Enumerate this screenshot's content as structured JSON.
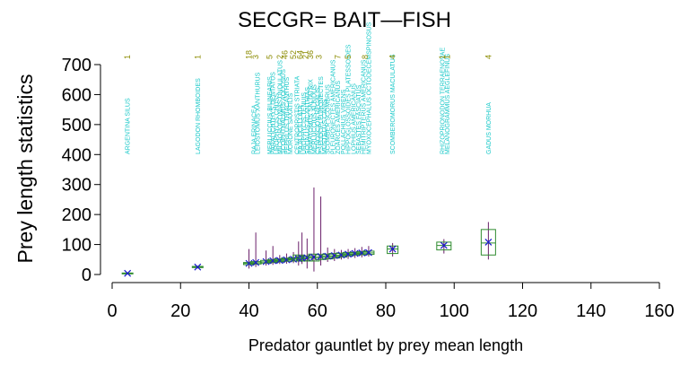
{
  "chart_data": {
    "type": "box",
    "title": "SECGR= BAIT—FISH",
    "xlabel": "Predator gauntlet by prey mean length",
    "ylabel": "Prey length statistics",
    "xlim": [
      0,
      160
    ],
    "ylim": [
      0,
      700
    ],
    "x_ticks": [
      0,
      20,
      40,
      60,
      80,
      100,
      120,
      140,
      160
    ],
    "y_ticks": [
      0,
      100,
      200,
      300,
      400,
      500,
      600,
      700
    ],
    "grid": false,
    "colors": {
      "box": "#2e8b2e",
      "whisker": "#6a1f6a",
      "mean": "#1a1acc",
      "species_label": "#19c8c8",
      "count_label": "#8b8b00",
      "axis": "#000000"
    },
    "boxes": [
      {
        "x": 4.5,
        "min": 2,
        "q1": 3,
        "median": 4,
        "q3": 5,
        "max": 6,
        "mean": 4
      },
      {
        "x": 25,
        "min": 20,
        "q1": 23,
        "median": 25,
        "q3": 27,
        "max": 29,
        "mean": 25
      },
      {
        "x": 40,
        "min": 20,
        "q1": 33,
        "median": 37,
        "q3": 40,
        "max": 85,
        "mean": 37
      },
      {
        "x": 42,
        "min": 25,
        "q1": 35,
        "median": 39,
        "q3": 43,
        "max": 140,
        "mean": 40
      },
      {
        "x": 45,
        "min": 30,
        "q1": 38,
        "median": 42,
        "q3": 47,
        "max": 80,
        "mean": 43
      },
      {
        "x": 47,
        "min": 32,
        "q1": 40,
        "median": 45,
        "q3": 50,
        "max": 95,
        "mean": 46
      },
      {
        "x": 49,
        "min": 35,
        "q1": 42,
        "median": 47,
        "q3": 52,
        "max": 65,
        "mean": 47
      },
      {
        "x": 51,
        "min": 36,
        "q1": 44,
        "median": 49,
        "q3": 54,
        "max": 70,
        "mean": 49
      },
      {
        "x": 53,
        "min": 38,
        "q1": 45,
        "median": 51,
        "q3": 56,
        "max": 75,
        "mean": 51
      },
      {
        "x": 54.5,
        "min": 30,
        "q1": 45,
        "median": 52,
        "q3": 65,
        "max": 110,
        "mean": 53
      },
      {
        "x": 55.5,
        "min": 35,
        "q1": 46,
        "median": 53,
        "q3": 60,
        "max": 140,
        "mean": 54
      },
      {
        "x": 57,
        "min": 20,
        "q1": 45,
        "median": 55,
        "q3": 62,
        "max": 120,
        "mean": 56
      },
      {
        "x": 59,
        "min": 10,
        "q1": 45,
        "median": 57,
        "q3": 68,
        "max": 290,
        "mean": 58
      },
      {
        "x": 61,
        "min": 30,
        "q1": 50,
        "median": 58,
        "q3": 66,
        "max": 260,
        "mean": 60
      },
      {
        "x": 63,
        "min": 42,
        "q1": 52,
        "median": 60,
        "q3": 68,
        "max": 90,
        "mean": 61
      },
      {
        "x": 65,
        "min": 45,
        "q1": 55,
        "median": 62,
        "q3": 70,
        "max": 85,
        "mean": 63
      },
      {
        "x": 67,
        "min": 50,
        "q1": 58,
        "median": 64,
        "q3": 71,
        "max": 82,
        "mean": 65
      },
      {
        "x": 69,
        "min": 52,
        "q1": 62,
        "median": 67,
        "q3": 73,
        "max": 85,
        "mean": 68
      },
      {
        "x": 71,
        "min": 55,
        "q1": 65,
        "median": 69,
        "q3": 74,
        "max": 88,
        "mean": 70
      },
      {
        "x": 73,
        "min": 57,
        "q1": 66,
        "median": 71,
        "q3": 76,
        "max": 92,
        "mean": 72
      },
      {
        "x": 75,
        "min": 60,
        "q1": 67,
        "median": 72,
        "q3": 78,
        "max": 95,
        "mean": 73
      },
      {
        "x": 82,
        "min": 60,
        "q1": 70,
        "median": 85,
        "q3": 95,
        "max": 105,
        "mean": 85
      },
      {
        "x": 97,
        "min": 70,
        "q1": 82,
        "median": 97,
        "q3": 108,
        "max": 118,
        "mean": 97
      },
      {
        "x": 110,
        "min": 50,
        "q1": 65,
        "median": 105,
        "q3": 150,
        "max": 175,
        "mean": 108
      }
    ],
    "species_labels": [
      {
        "x": 4.5,
        "text": "ARGENTINA SILUS"
      },
      {
        "x": 25,
        "text": "LAGODON RHOMBOIDES"
      },
      {
        "x": 41.5,
        "text": "RAJA ERINACEA"
      },
      {
        "x": 42.5,
        "text": "LEIOSTOMUS XANTHURUS"
      },
      {
        "x": 46,
        "text": "MERLUCCIUS BILINEARIS"
      },
      {
        "x": 47,
        "text": "PARALICHTHYS DENTATUS"
      },
      {
        "x": 48,
        "text": "UROPHYCIS CHUSS"
      },
      {
        "x": 49,
        "text": "MICROPOGONIAS UNDULATUS"
      },
      {
        "x": 50,
        "text": "SCOPHTHALMUS AQUOSUS"
      },
      {
        "x": 51,
        "text": "PEPRILUS TRIACANTHUS"
      },
      {
        "x": 52,
        "text": "MORONE SAXATILIS"
      },
      {
        "x": 54,
        "text": "CENTROPRISTIS STRIATA"
      },
      {
        "x": 55,
        "text": "RAJA OCELLATA"
      },
      {
        "x": 56,
        "text": "UROPHYCIS TENUIS"
      },
      {
        "x": 57,
        "text": "SQUALUS ACANTHIAS"
      },
      {
        "x": 58,
        "text": "POMATOMUS SALTATRIX"
      },
      {
        "x": 59,
        "text": "MERLUCCIUS ALBIDUS"
      },
      {
        "x": 60,
        "text": "CYNOSCION REGALIS"
      },
      {
        "x": 61,
        "text": "PSEUDOPLEURONECTES"
      },
      {
        "x": 62,
        "text": "MUSTELUS CANIS"
      },
      {
        "x": 63,
        "text": "SCOMBER SCOMBRUS"
      },
      {
        "x": 64.5,
        "text": "PLEURONECTES AMERICANUS"
      },
      {
        "x": 66,
        "text": "ZOARCES AMERICANUS"
      },
      {
        "x": 67.5,
        "text": "POLLACHIUS VIRENS"
      },
      {
        "x": 69,
        "text": "HIPPOGLOSSOIDES PLATESSOIDES"
      },
      {
        "x": 70.5,
        "text": "LOPHIUS AMERICANUS"
      },
      {
        "x": 72,
        "text": "SEBASTES FASCIATUS"
      },
      {
        "x": 73.5,
        "text": "HEMITRIPTERUS AMERICANUS"
      },
      {
        "x": 75,
        "text": "MYOXOCEPHALUS OCTODECEMSPINOSUS"
      },
      {
        "x": 82,
        "text": "SCOMBEROMORUS MACULATUS"
      },
      {
        "x": 96.5,
        "text": "RHIZOPRIONODON TERRAENOVAE"
      },
      {
        "x": 98,
        "text": "MELANOGRAMMUS AEGLEFINUS"
      },
      {
        "x": 110,
        "text": "GADUS MORHUA"
      }
    ],
    "count_labels": [
      {
        "x": 4.5,
        "text": "1"
      },
      {
        "x": 25,
        "text": "1"
      },
      {
        "x": 40,
        "text": "18"
      },
      {
        "x": 42,
        "text": "3"
      },
      {
        "x": 46,
        "text": "5"
      },
      {
        "x": 49,
        "text": "2"
      },
      {
        "x": 50.5,
        "text": "46"
      },
      {
        "x": 53,
        "text": "52"
      },
      {
        "x": 55,
        "text": "64"
      },
      {
        "x": 56.5,
        "text": "21"
      },
      {
        "x": 58,
        "text": "36"
      },
      {
        "x": 60.5,
        "text": "3"
      },
      {
        "x": 66,
        "text": "7"
      },
      {
        "x": 69,
        "text": "5"
      },
      {
        "x": 74,
        "text": "8"
      },
      {
        "x": 82,
        "text": "4"
      },
      {
        "x": 96.5,
        "text": "1"
      },
      {
        "x": 98,
        "text": "1"
      },
      {
        "x": 110,
        "text": "4"
      }
    ]
  }
}
